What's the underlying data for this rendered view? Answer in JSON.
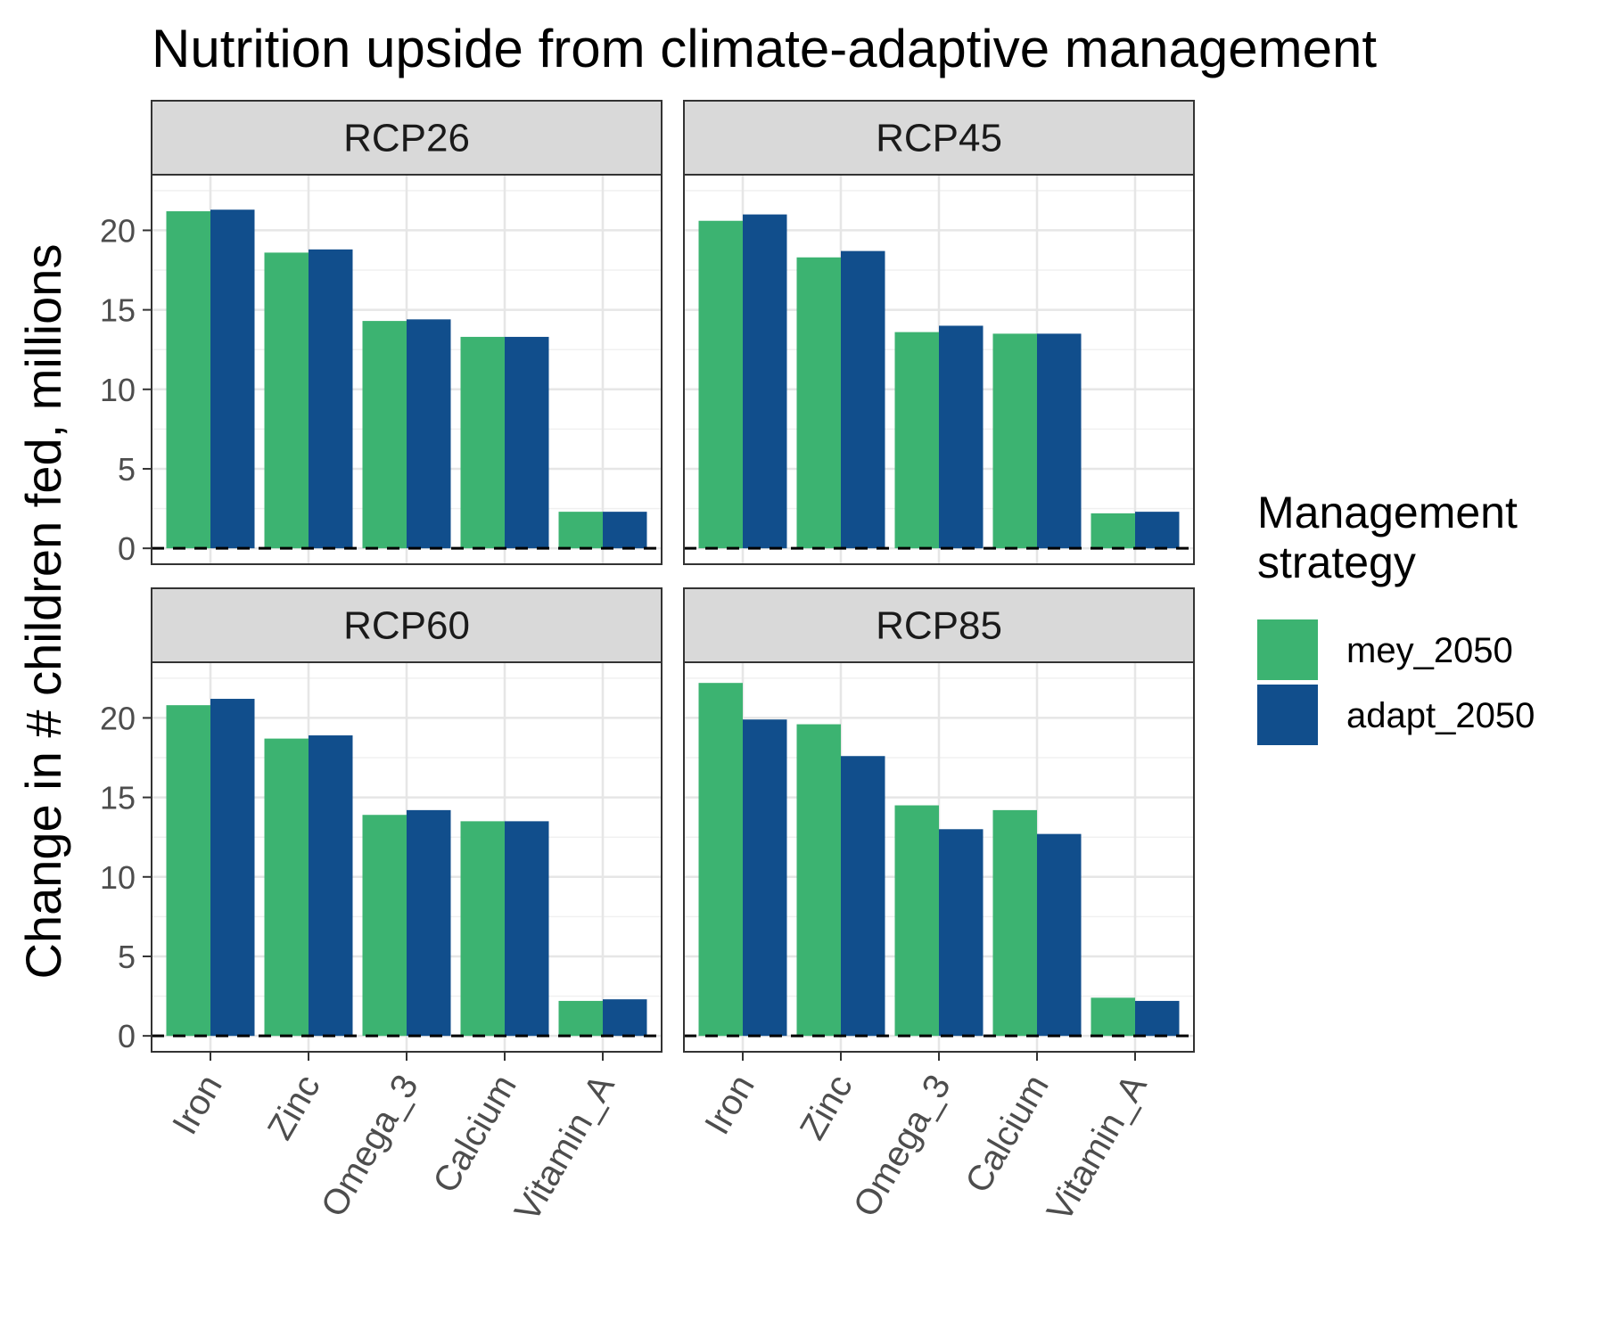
{
  "chart_data": {
    "type": "bar",
    "title": "Nutrition upside from climate-adaptive management",
    "xlabel": "",
    "ylabel": "Change in # children fed, millions",
    "ylim": [
      -1,
      23.5
    ],
    "yticks": [
      0,
      5,
      10,
      15,
      20
    ],
    "ytick_labels": [
      "0",
      "5",
      "10",
      "15",
      "20"
    ],
    "reference_line": 0,
    "grid": true,
    "legend_position": "right",
    "legend_title_lines": [
      "Management",
      "strategy"
    ],
    "categories": [
      "Iron",
      "Zinc",
      "Omega_3",
      "Calcium",
      "Vitamin_A"
    ],
    "series_names": [
      "mey_2050",
      "adapt_2050"
    ],
    "colors": {
      "mey_2050": "#3CB371",
      "adapt_2050": "#114E8C"
    },
    "facets": [
      {
        "label": "RCP26",
        "series": [
          {
            "name": "mey_2050",
            "values": [
              21.2,
              18.6,
              14.3,
              13.3,
              2.3
            ]
          },
          {
            "name": "adapt_2050",
            "values": [
              21.3,
              18.8,
              14.4,
              13.3,
              2.3
            ]
          }
        ]
      },
      {
        "label": "RCP45",
        "series": [
          {
            "name": "mey_2050",
            "values": [
              20.6,
              18.3,
              13.6,
              13.5,
              2.2
            ]
          },
          {
            "name": "adapt_2050",
            "values": [
              21.0,
              18.7,
              14.0,
              13.5,
              2.3
            ]
          }
        ]
      },
      {
        "label": "RCP60",
        "series": [
          {
            "name": "mey_2050",
            "values": [
              20.8,
              18.7,
              13.9,
              13.5,
              2.2
            ]
          },
          {
            "name": "adapt_2050",
            "values": [
              21.2,
              18.9,
              14.2,
              13.5,
              2.3
            ]
          }
        ]
      },
      {
        "label": "RCP85",
        "series": [
          {
            "name": "mey_2050",
            "values": [
              22.2,
              19.6,
              14.5,
              14.2,
              2.4
            ]
          },
          {
            "name": "adapt_2050",
            "values": [
              19.9,
              17.6,
              13.0,
              12.7,
              2.2
            ]
          }
        ]
      }
    ]
  }
}
